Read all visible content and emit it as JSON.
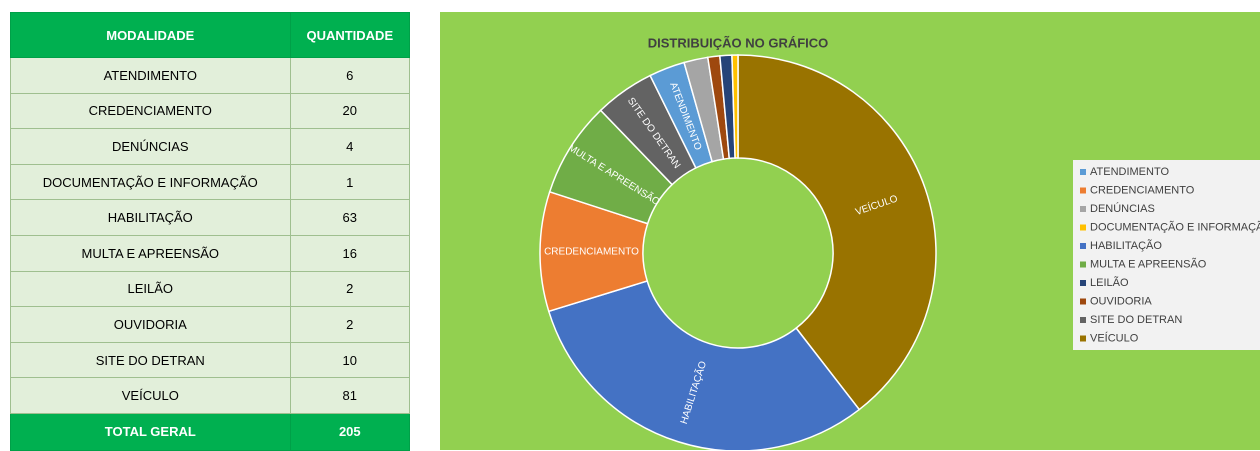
{
  "table": {
    "headers": [
      "MODALIDADE",
      "QUANTIDADE"
    ],
    "total_label": "TOTAL GERAL",
    "total": 205
  },
  "chart_data": {
    "type": "pie",
    "title": "DISTRIBUIÇÃO NO GRÁFICO",
    "categories": [
      "ATENDIMENTO",
      "CREDENCIAMENTO",
      "DENÚNCIAS",
      "DOCUMENTAÇÃO E INFORMAÇÃO",
      "HABILITAÇÃO",
      "MULTA E APREENSÃO",
      "LEILÃO",
      "OUVIDORIA",
      "SITE DO DETRAN",
      "VEÍCULO"
    ],
    "values": [
      6,
      20,
      4,
      1,
      63,
      16,
      2,
      2,
      10,
      81
    ],
    "colors": [
      "#5b9bd5",
      "#ed7d31",
      "#a5a5a5",
      "#ffc000",
      "#4472c4",
      "#70ad47",
      "#264478",
      "#9e480e",
      "#636363",
      "#997300"
    ],
    "legend": "right"
  }
}
